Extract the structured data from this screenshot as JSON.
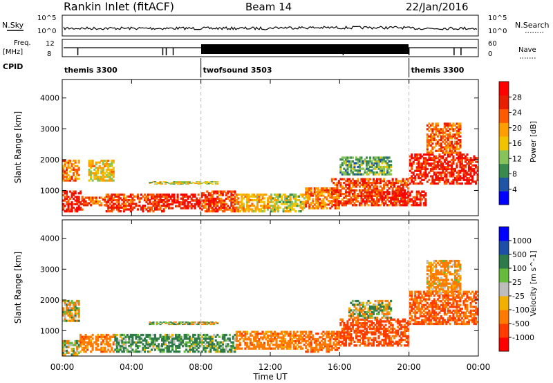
{
  "header": {
    "title_left": "Rankin Inlet (fitACF)",
    "title_center": "Beam 14",
    "title_right": "22/Jan/2016"
  },
  "top_panels": {
    "nsky_label": "N.Sky",
    "nsearch_label": "N.Search",
    "left_ticks": [
      "10^5",
      "10^0"
    ],
    "right_ticks": [
      "10^5",
      "10^0"
    ],
    "freq_label_1": "Freq.",
    "freq_label_2": "[MHz]",
    "freq_ticks": [
      "12",
      "8"
    ],
    "nave_label": "Nave",
    "nave_ticks": [
      "60",
      "0"
    ],
    "cpid_label": "CPID",
    "cpid_segments": [
      {
        "label": "themis 3300",
        "start_hour": 0,
        "end_hour": 8
      },
      {
        "label": "twofsound 3503",
        "start_hour": 8,
        "end_hour": 20
      },
      {
        "label": "themis 3300",
        "start_hour": 20,
        "end_hour": 24
      }
    ]
  },
  "x_axis": {
    "label": "Time UT",
    "ticks": [
      "00:00",
      "04:00",
      "08:00",
      "12:00",
      "16:00",
      "20:00",
      "00:00"
    ]
  },
  "colors": {
    "power_bar": [
      "#0000ff",
      "#2055a5",
      "#3a8a4f",
      "#86c35a",
      "#f2c400",
      "#ff9e00",
      "#ff5a00",
      "#e81e00",
      "#ff0000"
    ],
    "velocity_bar": [
      "#0000ff",
      "#1e4fa8",
      "#2f7a49",
      "#66bb3a",
      "#bdbdbd",
      "#f2b000",
      "#ff7a00",
      "#ff3c00",
      "#ff0000"
    ]
  },
  "chart_data": [
    {
      "type": "heatmap",
      "name": "power",
      "ylabel": "Slant Range [km]",
      "xlabel": "",
      "x_range_hours": [
        0,
        24
      ],
      "ylim": [
        180,
        4600
      ],
      "y_ticks": [
        "4000",
        "3000",
        "2000",
        "1000"
      ],
      "colorbar_label": "Power [dB]",
      "colorbar_ticks": [
        "28",
        "24",
        "20",
        "16",
        "12",
        "8",
        "4"
      ],
      "regions": [
        {
          "t0": 0.0,
          "t1": 1.2,
          "r0": 300,
          "r1": 1000,
          "value": 26
        },
        {
          "t0": 0.0,
          "t1": 1.0,
          "r0": 1300,
          "r1": 2000,
          "value": 20
        },
        {
          "t0": 1.2,
          "t1": 2.5,
          "r0": 500,
          "r1": 800,
          "value": 22
        },
        {
          "t0": 1.5,
          "t1": 3.0,
          "r0": 1300,
          "r1": 2000,
          "value": 16
        },
        {
          "t0": 2.5,
          "t1": 6.0,
          "r0": 300,
          "r1": 900,
          "value": 24
        },
        {
          "t0": 6.0,
          "t1": 8.0,
          "r0": 400,
          "r1": 900,
          "value": 26
        },
        {
          "t0": 5.0,
          "t1": 9.0,
          "r0": 1200,
          "r1": 1300,
          "value": 14
        },
        {
          "t0": 8.0,
          "t1": 10.0,
          "r0": 300,
          "r1": 1000,
          "value": 24
        },
        {
          "t0": 10.0,
          "t1": 12.0,
          "r0": 300,
          "r1": 900,
          "value": 18
        },
        {
          "t0": 12.0,
          "t1": 14.0,
          "r0": 300,
          "r1": 900,
          "value": 14
        },
        {
          "t0": 14.0,
          "t1": 16.0,
          "r0": 400,
          "r1": 1100,
          "value": 20
        },
        {
          "t0": 15.5,
          "t1": 20.0,
          "r0": 500,
          "r1": 1400,
          "value": 24
        },
        {
          "t0": 16.0,
          "t1": 19.0,
          "r0": 1500,
          "r1": 2100,
          "value": 10
        },
        {
          "t0": 19.0,
          "t1": 21.0,
          "r0": 500,
          "r1": 1000,
          "value": 26
        },
        {
          "t0": 20.0,
          "t1": 24.0,
          "r0": 1200,
          "r1": 2200,
          "value": 26
        },
        {
          "t0": 21.0,
          "t1": 23.0,
          "r0": 2200,
          "r1": 3200,
          "value": 22
        }
      ]
    },
    {
      "type": "heatmap",
      "name": "velocity",
      "ylabel": "Slant Range [km]",
      "xlabel": "Time UT",
      "x_range_hours": [
        0,
        24
      ],
      "ylim": [
        180,
        4600
      ],
      "y_ticks": [
        "4000",
        "3000",
        "2000",
        "1000"
      ],
      "colorbar_label": "Velocity [m s^-1]",
      "colorbar_ticks": [
        "1000",
        "500",
        "100",
        "25",
        "-25",
        "-100",
        "-500",
        "-1000"
      ],
      "regions": [
        {
          "t0": 0.0,
          "t1": 1.0,
          "r0": 200,
          "r1": 700,
          "value": 0
        },
        {
          "t0": 0.0,
          "t1": 1.0,
          "r0": 1300,
          "r1": 2000,
          "value": -100
        },
        {
          "t0": 1.0,
          "t1": 3.0,
          "r0": 300,
          "r1": 900,
          "value": -300
        },
        {
          "t0": 3.0,
          "t1": 8.0,
          "r0": 300,
          "r1": 900,
          "value": 200
        },
        {
          "t0": 5.0,
          "t1": 9.0,
          "r0": 1200,
          "r1": 1300,
          "value": 0
        },
        {
          "t0": 8.0,
          "t1": 10.0,
          "r0": 300,
          "r1": 900,
          "value": 150
        },
        {
          "t0": 10.0,
          "t1": 14.0,
          "r0": 400,
          "r1": 1000,
          "value": -300
        },
        {
          "t0": 14.0,
          "t1": 16.0,
          "r0": 300,
          "r1": 1000,
          "value": -400
        },
        {
          "t0": 16.0,
          "t1": 20.0,
          "r0": 500,
          "r1": 1400,
          "value": -600
        },
        {
          "t0": 16.5,
          "t1": 19.0,
          "r0": 1400,
          "r1": 2000,
          "value": 0
        },
        {
          "t0": 20.0,
          "t1": 24.0,
          "r0": 1200,
          "r1": 2300,
          "value": -500
        },
        {
          "t0": 21.0,
          "t1": 23.0,
          "r0": 2200,
          "r1": 3300,
          "value": -200
        }
      ]
    }
  ]
}
